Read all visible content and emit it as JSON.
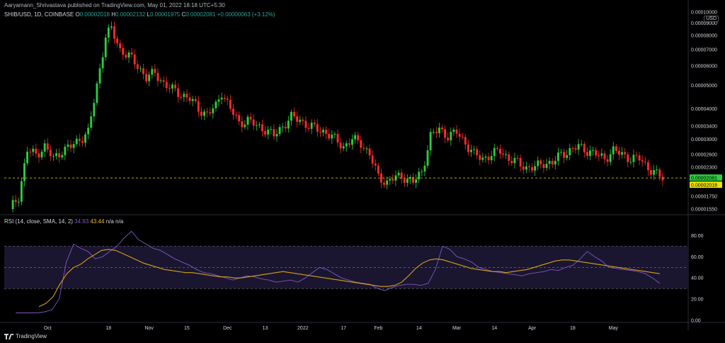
{
  "header": {
    "publisher": "Aaryamann_Shrivastava published on TradingView.com, May 01, 2022 18:18 UTC+5:30"
  },
  "legend": {
    "symbol": "SHIB/USD, 1D, COINBASE",
    "open_label": "O",
    "open": "0.00002018",
    "high_label": "H",
    "high": "0.00002132",
    "low_label": "L",
    "low": "0.00001975",
    "close_label": "C",
    "close": "0.00002081",
    "change": "+0.00000063 (+3.12%)"
  },
  "rsi_legend": {
    "name": "RSI (14, close, SMA, 14, 2)",
    "rsi_value": "34.93",
    "sma_value": "43.44",
    "na": "n/a n/a"
  },
  "currency": "USD",
  "brand": "TradingView",
  "colors": {
    "up": "#26a69a",
    "up_candle": "#2ecc40",
    "down": "#ff2b2b",
    "rsi": "#7e57c2",
    "rsi_sma": "#d4a017",
    "last_price": "#2ecc40",
    "prev_close": "#f0e000"
  },
  "chart_data": [
    {
      "type": "candlestick",
      "title": "SHIB/USD, 1D, COINBASE",
      "scale": "log",
      "y_ticks": [
        "0.00010000",
        "0.00009000",
        "0.00008000",
        "0.00007000",
        "0.00006000",
        "0.00005000",
        "0.00004000",
        "0.00003400",
        "0.00003000",
        "0.00002600",
        "0.00002300",
        "0.00001750",
        "0.00001550"
      ],
      "y_tick_values": [
        0.0001,
        9e-05,
        8e-05,
        7e-05,
        6e-05,
        5e-05,
        4e-05,
        3.4e-05,
        3e-05,
        2.6e-05,
        2.3e-05,
        1.75e-05,
        1.55e-05
      ],
      "x_ticks": [
        "Oct",
        "18",
        "Nov",
        "15",
        "Dec",
        "13",
        "2022",
        "17",
        "Feb",
        "14",
        "Mar",
        "14",
        "Apr",
        "18",
        "May"
      ],
      "last_price_label": "0.00002081",
      "prev_close_label": "0.00002018",
      "last_price": 2.081e-05,
      "prev_close": 2.018e-05,
      "close_path": [
        [
          0,
          1.55e-05
        ],
        [
          3,
          1.75e-05
        ],
        [
          6,
          2.7e-05
        ],
        [
          9,
          2.6e-05
        ],
        [
          12,
          2.8e-05
        ],
        [
          15,
          2.5e-05
        ],
        [
          18,
          2.7e-05
        ],
        [
          21,
          2.8e-05
        ],
        [
          24,
          3e-05
        ],
        [
          27,
          3.2e-05
        ],
        [
          30,
          5e-05
        ],
        [
          33,
          8e-05
        ],
        [
          35,
          8.5e-05
        ],
        [
          38,
          7e-05
        ],
        [
          41,
          6.6e-05
        ],
        [
          44,
          6e-05
        ],
        [
          47,
          5.4e-05
        ],
        [
          50,
          5.6e-05
        ],
        [
          53,
          5.1e-05
        ],
        [
          56,
          4.8e-05
        ],
        [
          59,
          4.6e-05
        ],
        [
          62,
          4.4e-05
        ],
        [
          65,
          4e-05
        ],
        [
          68,
          3.8e-05
        ],
        [
          71,
          4.1e-05
        ],
        [
          73,
          4.7e-05
        ],
        [
          76,
          4e-05
        ],
        [
          79,
          3.5e-05
        ],
        [
          82,
          3.6e-05
        ],
        [
          85,
          3.4e-05
        ],
        [
          88,
          3.3e-05
        ],
        [
          91,
          3.1e-05
        ],
        [
          94,
          3.4e-05
        ],
        [
          97,
          3.7e-05
        ],
        [
          100,
          3.6e-05
        ],
        [
          103,
          3.4e-05
        ],
        [
          106,
          3.3e-05
        ],
        [
          109,
          3.2e-05
        ],
        [
          112,
          3e-05
        ],
        [
          115,
          2.8e-05
        ],
        [
          118,
          3e-05
        ],
        [
          121,
          2.9e-05
        ],
        [
          124,
          2.6e-05
        ],
        [
          127,
          2.1e-05
        ],
        [
          130,
          2e-05
        ],
        [
          133,
          2.1e-05
        ],
        [
          136,
          2.1e-05
        ],
        [
          139,
          2e-05
        ],
        [
          142,
          2.2e-05
        ],
        [
          145,
          3.1e-05
        ],
        [
          148,
          3.3e-05
        ],
        [
          151,
          3.1e-05
        ],
        [
          154,
          3.2e-05
        ],
        [
          157,
          2.9e-05
        ],
        [
          160,
          2.6e-05
        ],
        [
          163,
          2.5e-05
        ],
        [
          166,
          2.6e-05
        ],
        [
          169,
          2.7e-05
        ],
        [
          172,
          2.5e-05
        ],
        [
          175,
          2.4e-05
        ],
        [
          178,
          2.3e-05
        ],
        [
          181,
          2.3e-05
        ],
        [
          184,
          2.4e-05
        ],
        [
          187,
          2.4e-05
        ],
        [
          190,
          2.6e-05
        ],
        [
          193,
          2.7e-05
        ],
        [
          196,
          2.8e-05
        ],
        [
          199,
          2.7e-05
        ],
        [
          202,
          2.6e-05
        ],
        [
          205,
          2.5e-05
        ],
        [
          208,
          2.7e-05
        ],
        [
          211,
          2.6e-05
        ],
        [
          214,
          2.5e-05
        ],
        [
          217,
          2.5e-05
        ],
        [
          220,
          2.3e-05
        ],
        [
          223,
          2.15e-05
        ],
        [
          225,
          2.08e-05
        ]
      ]
    },
    {
      "type": "line",
      "title": "RSI (14, close, SMA, 14, 2)",
      "y_ticks": [
        "80.00",
        "60.00",
        "40.00",
        "20.00",
        "0.00"
      ],
      "y_tick_values": [
        80,
        60,
        40,
        20,
        0
      ],
      "band": [
        30,
        70
      ],
      "midline": 50,
      "x_ticks": [
        "Oct",
        "18",
        "Nov",
        "15",
        "Dec",
        "13",
        "2022",
        "17",
        "Feb",
        "14",
        "Mar",
        "14",
        "Apr",
        "18",
        "May"
      ],
      "series": [
        {
          "values": [
            7,
            7,
            7,
            7,
            8,
            10,
            20,
            55,
            72,
            68,
            65,
            58,
            60,
            65,
            70,
            78,
            84,
            76,
            72,
            68,
            66,
            62,
            58,
            55,
            52,
            48,
            45,
            44,
            42,
            40,
            38,
            40,
            42,
            41,
            39,
            38,
            36,
            37,
            38,
            36,
            40,
            45,
            50,
            48,
            44,
            40,
            38,
            36,
            35,
            34,
            30,
            28,
            31,
            33,
            34,
            34,
            33,
            35,
            48,
            70,
            67,
            60,
            58,
            55,
            50,
            48,
            46,
            45,
            44,
            43,
            42,
            44,
            45,
            46,
            48,
            47,
            50,
            52,
            58,
            65,
            60,
            56,
            50,
            49,
            48,
            47,
            46,
            44,
            40,
            35
          ]
        },
        {
          "values": [
            13,
            16,
            22,
            34,
            44,
            50,
            53,
            58,
            62,
            66,
            67,
            66,
            63,
            60,
            57,
            54,
            52,
            50,
            48,
            47,
            46,
            45,
            45,
            44,
            43,
            42,
            41,
            41,
            40,
            40,
            41,
            42,
            43,
            44,
            45,
            46,
            45,
            44,
            43,
            42,
            41,
            40,
            39,
            38,
            37,
            36,
            35,
            34,
            33,
            32,
            32,
            33,
            36,
            42,
            49,
            54,
            57,
            58,
            57,
            55,
            53,
            51,
            49,
            48,
            47,
            46,
            46,
            45,
            46,
            47,
            48,
            50,
            52,
            54,
            56,
            57,
            57,
            56,
            55,
            54,
            53,
            52,
            51,
            50,
            49,
            48,
            47,
            46,
            45,
            44
          ]
        }
      ]
    }
  ]
}
